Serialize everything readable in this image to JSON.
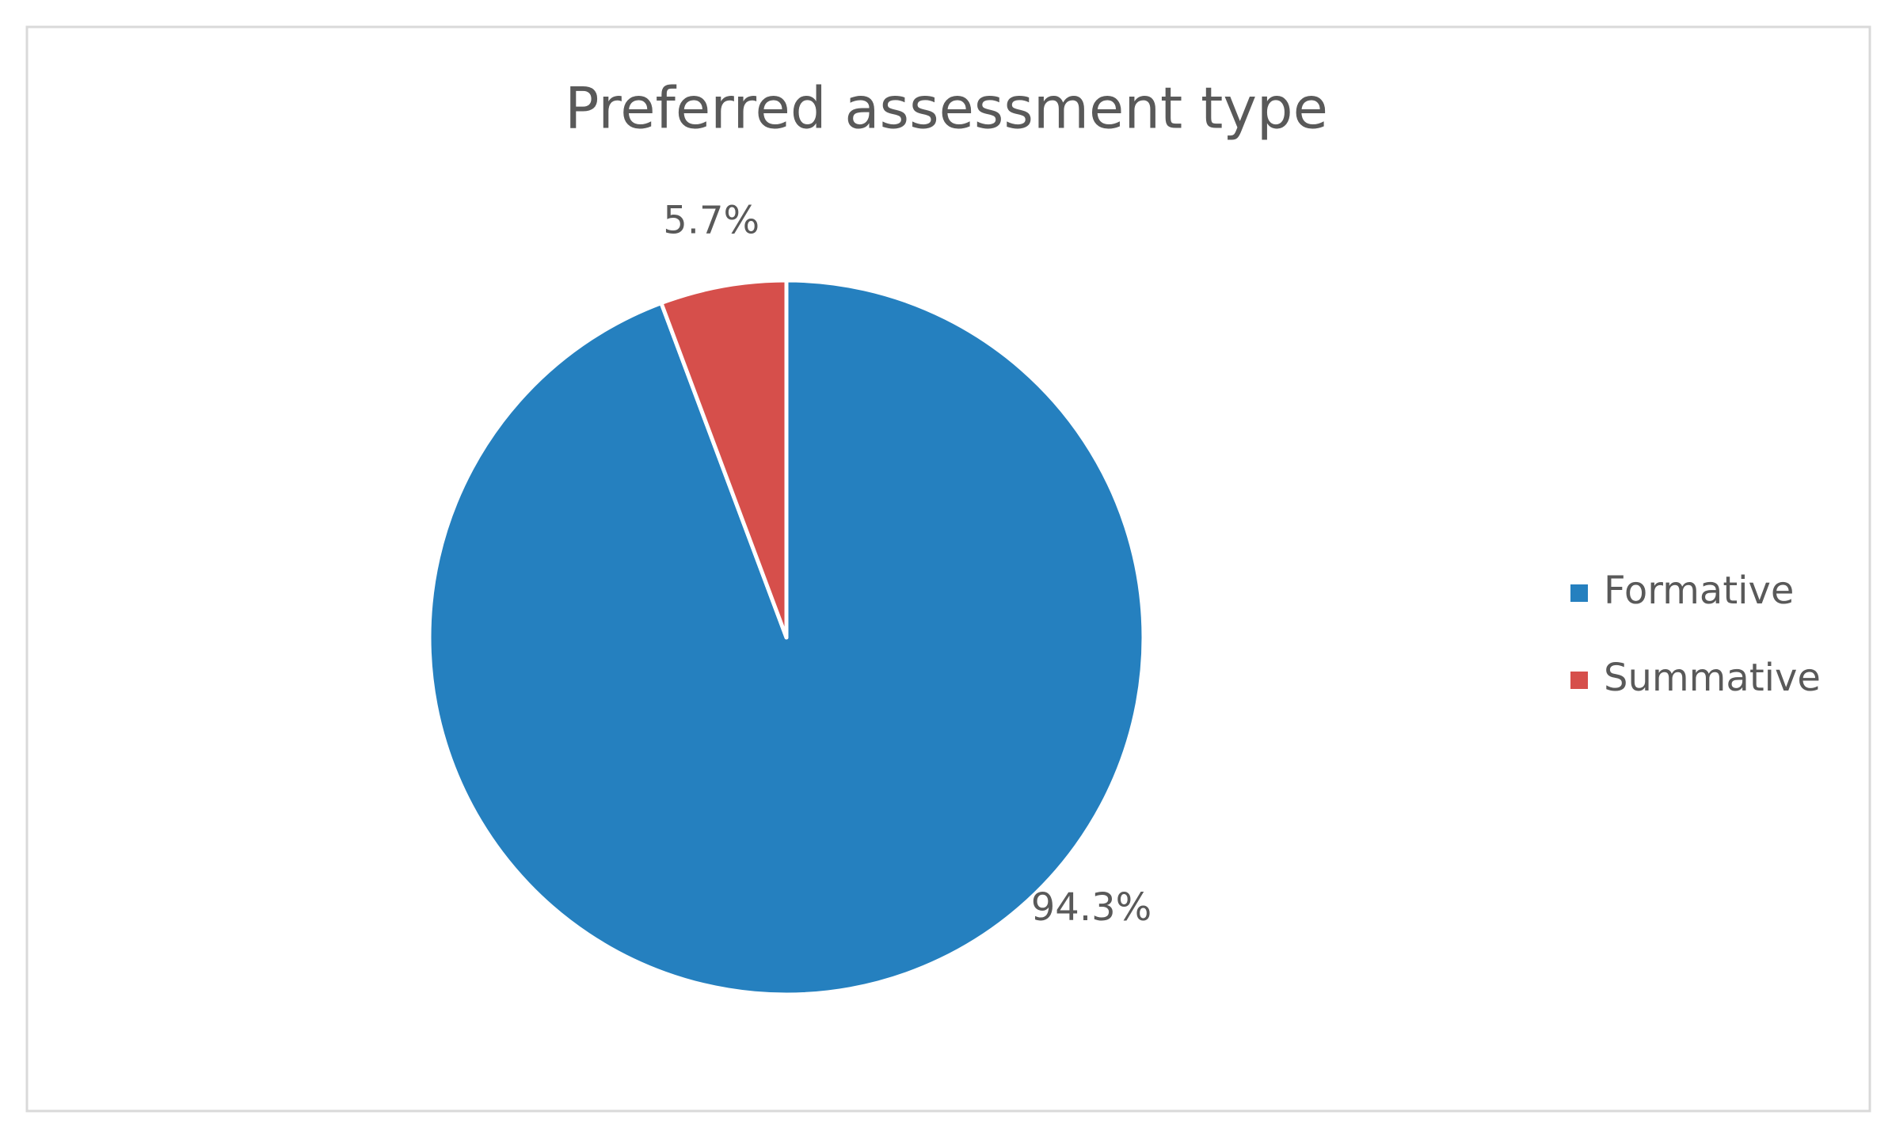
{
  "chart_data": {
    "type": "pie",
    "title": "Preferred assessment type",
    "categories": [
      "Formative",
      "Summative"
    ],
    "values": [
      94.3,
      5.7
    ],
    "value_labels": [
      "94.3%",
      "5.7%"
    ],
    "colors": [
      "#2580bf",
      "#d64f4b"
    ],
    "legend": "right"
  }
}
